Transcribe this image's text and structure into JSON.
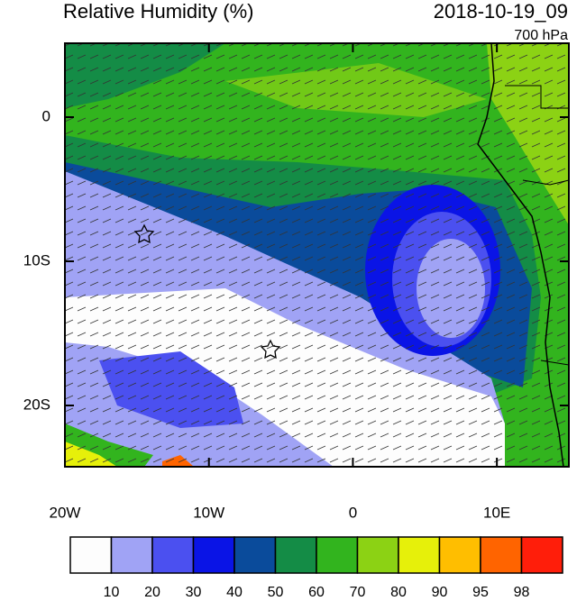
{
  "header": {
    "title": "Relative Humidity (%)",
    "date": "2018-10-19_09",
    "level": "700 hPa"
  },
  "map": {
    "xlim": [
      -20,
      15
    ],
    "ylim": [
      -24.25,
      5.125
    ],
    "xticks": [
      {
        "value": -20,
        "label": "20W"
      },
      {
        "value": -10,
        "label": "10W"
      },
      {
        "value": 0,
        "label": "0"
      },
      {
        "value": 10,
        "label": "10E"
      }
    ],
    "yticks": [
      {
        "value": 0,
        "label": "0"
      },
      {
        "value": -10,
        "label": "10S"
      },
      {
        "value": -20,
        "label": "20S"
      }
    ]
  },
  "colorbar": {
    "levels": [
      10,
      20,
      30,
      40,
      50,
      60,
      70,
      80,
      90,
      95,
      98
    ],
    "colors": [
      "#fdfdfd",
      "#a0a3f5",
      "#4b50f0",
      "#0a14e6",
      "#0a4b9b",
      "#148c46",
      "#32b41e",
      "#8cd214",
      "#e6f00a",
      "#ffbe00",
      "#ff6400",
      "#ff1e0a"
    ]
  }
}
